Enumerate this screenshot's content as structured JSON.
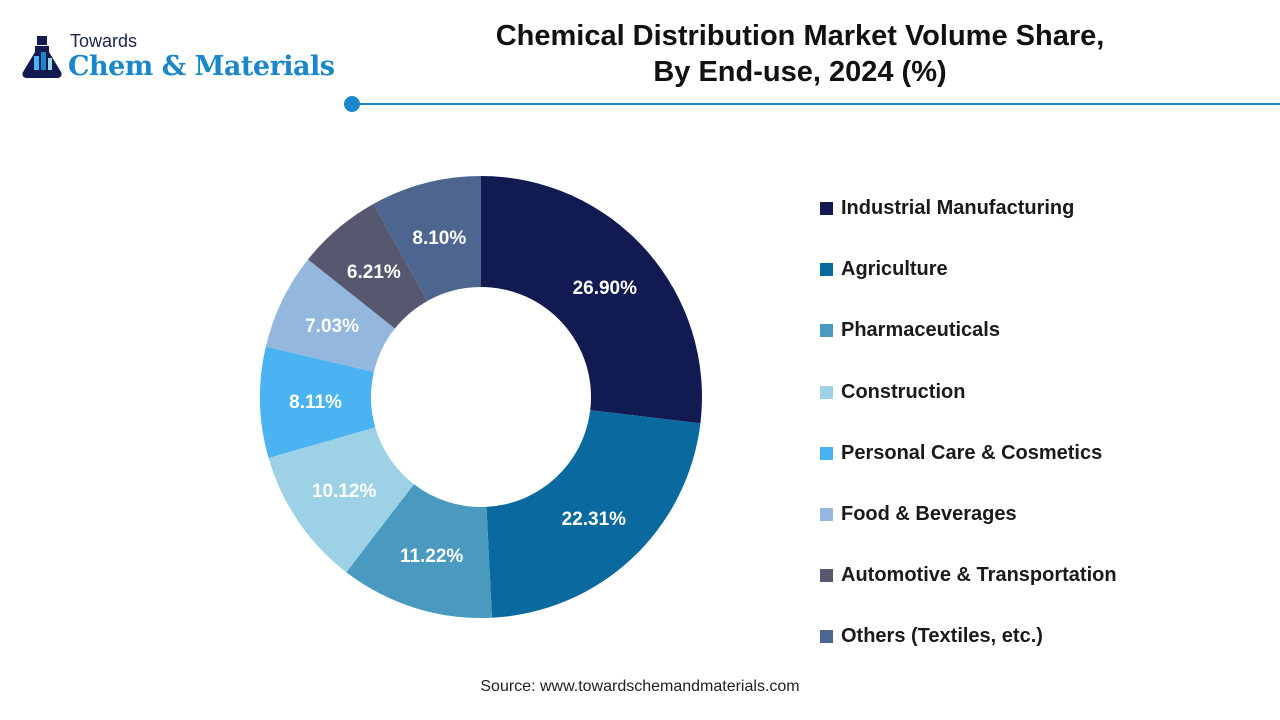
{
  "logo": {
    "line1": "Towards",
    "line2": "Chem & Materials"
  },
  "chart_data": {
    "type": "pie",
    "title": "Chemical Distribution Market Volume Share,",
    "subtitle": "By End-use, 2024 (%)",
    "categories": [
      "Industrial Manufacturing",
      "Agriculture",
      "Pharmaceuticals",
      "Construction",
      "Personal Care & Cosmetics",
      "Food & Beverages",
      "Automotive & Transportation",
      "Others (Textiles, etc.)"
    ],
    "values": [
      26.9,
      22.31,
      11.22,
      10.12,
      8.11,
      7.03,
      6.21,
      8.1
    ],
    "labels": [
      "26.90%",
      "22.31%",
      "11.22%",
      "10.12%",
      "8.11%",
      "7.03%",
      "6.21%",
      "8.10%"
    ],
    "colors": [
      "#121a52",
      "#0a6aa0",
      "#4a9ac0",
      "#9dd1e6",
      "#4cb3f3",
      "#94b7de",
      "#55586f",
      "#4d6690"
    ],
    "legend_position": "right",
    "donut": true
  },
  "source": "Source: www.towardschemandmaterials.com"
}
